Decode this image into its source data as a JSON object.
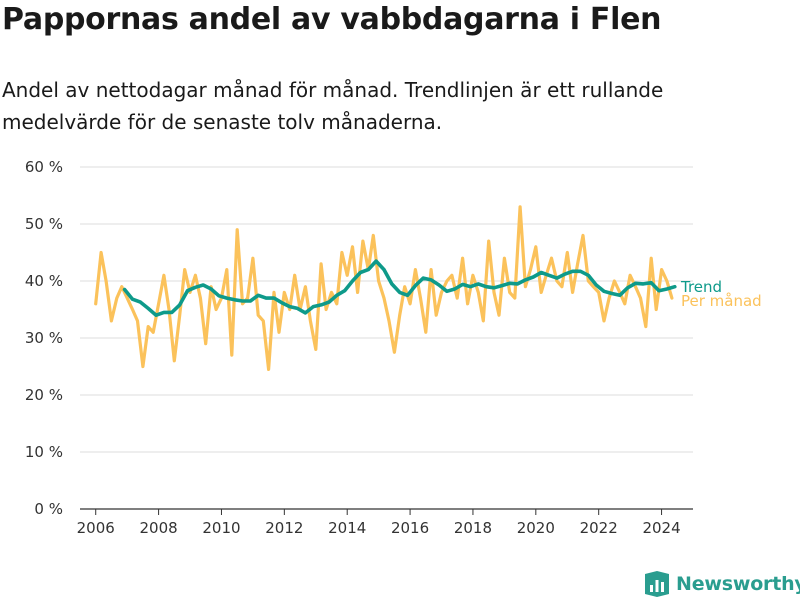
{
  "header": {
    "title": "Pappornas andel av vabbdagarna i Flen",
    "subtitle": "Andel av nettodagar månad för månad. Trendlinjen är ett rullande medelvärde för de senaste tolv månaderna."
  },
  "brand": {
    "name": "Newsworthy",
    "icon": "newsworthy-logo-icon",
    "color": "#2a9d8f"
  },
  "colors": {
    "trend": "#0e9a8a",
    "monthly": "#fbc25b",
    "grid": "#dddddd",
    "axis": "#333333"
  },
  "chart_data": {
    "type": "line",
    "title": "Pappornas andel av vabbdagarna i Flen",
    "subtitle": "Andel av nettodagar månad för månad. Trendlinjen är ett rullande medelvärde för de senaste tolv månaderna.",
    "xlabel": "",
    "ylabel": "",
    "xlim": [
      2005.5,
      2025.0
    ],
    "ylim": [
      0,
      60
    ],
    "x_ticks": [
      2006,
      2008,
      2010,
      2012,
      2014,
      2016,
      2018,
      2020,
      2022,
      2024
    ],
    "x_tick_labels": [
      "2006",
      "2008",
      "2010",
      "2012",
      "2014",
      "2016",
      "2018",
      "2020",
      "2022",
      "2024"
    ],
    "y_ticks": [
      0,
      10,
      20,
      30,
      40,
      50,
      60
    ],
    "y_tick_labels": [
      "0 %",
      "10 %",
      "20 %",
      "30 %",
      "40 %",
      "50 %",
      "60 %"
    ],
    "grid": "horizontal",
    "legend": "direct labels at right end of lines",
    "series": [
      {
        "name": "Per månad",
        "color": "#fbc25b",
        "x": [
          2006.0,
          2006.17,
          2006.33,
          2006.5,
          2006.67,
          2006.83,
          2007.0,
          2007.17,
          2007.33,
          2007.5,
          2007.67,
          2007.83,
          2008.0,
          2008.17,
          2008.33,
          2008.5,
          2008.67,
          2008.83,
          2009.0,
          2009.17,
          2009.33,
          2009.5,
          2009.67,
          2009.83,
          2010.0,
          2010.17,
          2010.33,
          2010.5,
          2010.67,
          2010.83,
          2011.0,
          2011.17,
          2011.33,
          2011.5,
          2011.67,
          2011.83,
          2012.0,
          2012.17,
          2012.33,
          2012.5,
          2012.67,
          2012.83,
          2013.0,
          2013.17,
          2013.33,
          2013.5,
          2013.67,
          2013.83,
          2014.0,
          2014.17,
          2014.33,
          2014.5,
          2014.67,
          2014.83,
          2015.0,
          2015.17,
          2015.33,
          2015.5,
          2015.67,
          2015.83,
          2016.0,
          2016.17,
          2016.33,
          2016.5,
          2016.67,
          2016.83,
          2017.0,
          2017.17,
          2017.33,
          2017.5,
          2017.67,
          2017.83,
          2018.0,
          2018.17,
          2018.33,
          2018.5,
          2018.67,
          2018.83,
          2019.0,
          2019.17,
          2019.33,
          2019.5,
          2019.67,
          2019.83,
          2020.0,
          2020.17,
          2020.33,
          2020.5,
          2020.67,
          2020.83,
          2021.0,
          2021.17,
          2021.33,
          2021.5,
          2021.67,
          2021.83,
          2022.0,
          2022.17,
          2022.33,
          2022.5,
          2022.67,
          2022.83,
          2023.0,
          2023.17,
          2023.33,
          2023.5,
          2023.67,
          2023.83,
          2024.0,
          2024.17,
          2024.33
        ],
        "y": [
          36,
          45,
          40,
          33,
          37,
          39,
          37,
          35,
          33,
          25,
          32,
          31,
          36,
          41,
          35,
          26,
          34,
          42,
          38,
          41,
          37,
          29,
          39,
          35,
          37,
          42,
          27,
          49,
          36,
          37,
          44,
          34,
          33,
          24.5,
          38,
          31,
          38,
          35,
          41,
          35,
          39,
          33,
          28,
          43,
          35,
          38,
          36,
          45,
          41,
          46,
          38,
          47,
          42,
          48,
          40,
          37,
          33,
          27.5,
          34,
          39,
          36,
          42,
          37,
          31,
          42,
          34,
          38,
          40,
          41,
          37,
          44,
          36,
          41,
          38,
          33,
          47,
          38,
          34,
          44,
          38,
          37,
          53,
          39,
          42,
          46,
          38,
          41,
          44,
          40,
          39,
          45,
          38,
          43,
          48,
          40,
          39,
          38,
          33,
          37,
          40,
          38,
          36,
          41,
          39,
          37,
          32,
          44,
          35,
          42,
          40,
          37
        ]
      },
      {
        "name": "Trend",
        "color": "#0e9a8a",
        "x": [
          2006.92,
          2007.17,
          2007.42,
          2007.67,
          2007.92,
          2008.17,
          2008.42,
          2008.67,
          2008.92,
          2009.17,
          2009.42,
          2009.67,
          2009.92,
          2010.17,
          2010.42,
          2010.67,
          2010.92,
          2011.17,
          2011.42,
          2011.67,
          2011.92,
          2012.17,
          2012.42,
          2012.67,
          2012.92,
          2013.17,
          2013.42,
          2013.67,
          2013.92,
          2014.17,
          2014.42,
          2014.67,
          2014.92,
          2015.17,
          2015.42,
          2015.67,
          2015.92,
          2016.17,
          2016.42,
          2016.67,
          2016.92,
          2017.17,
          2017.42,
          2017.67,
          2017.92,
          2018.17,
          2018.42,
          2018.67,
          2018.92,
          2019.17,
          2019.42,
          2019.67,
          2019.92,
          2020.17,
          2020.42,
          2020.67,
          2020.92,
          2021.17,
          2021.42,
          2021.67,
          2021.92,
          2022.17,
          2022.42,
          2022.67,
          2022.92,
          2023.17,
          2023.42,
          2023.67,
          2023.92,
          2024.17,
          2024.42
        ],
        "y": [
          38.5,
          36.8,
          36.3,
          35.2,
          34.0,
          34.5,
          34.5,
          35.8,
          38.3,
          38.9,
          39.3,
          38.6,
          37.4,
          37.0,
          36.7,
          36.5,
          36.5,
          37.5,
          37.0,
          37.0,
          36.2,
          35.5,
          35.2,
          34.4,
          35.5,
          35.8,
          36.3,
          37.5,
          38.3,
          40.0,
          41.5,
          42.0,
          43.5,
          42.0,
          39.5,
          38.0,
          37.5,
          39.2,
          40.5,
          40.2,
          39.3,
          38.2,
          38.6,
          39.4,
          39.0,
          39.5,
          39.0,
          38.8,
          39.2,
          39.6,
          39.5,
          40.2,
          40.7,
          41.5,
          41.0,
          40.5,
          41.2,
          41.7,
          41.7,
          41.0,
          39.3,
          38.2,
          37.8,
          37.5,
          38.8,
          39.6,
          39.5,
          39.7,
          38.3,
          38.6,
          39.0
        ]
      }
    ]
  }
}
